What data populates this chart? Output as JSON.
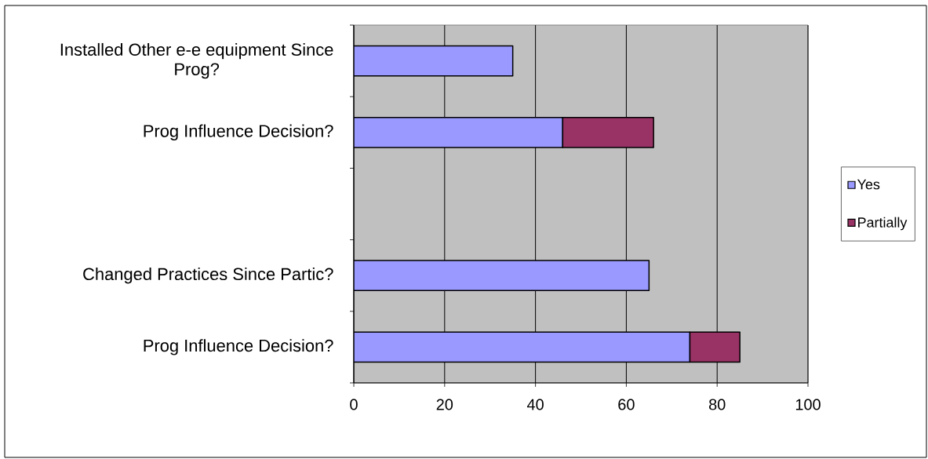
{
  "chart_data": {
    "type": "bar",
    "orientation": "horizontal",
    "stacked": true,
    "categories": [
      "Installed Other e-e equipment Since Prog?",
      "Prog Influence Decision?",
      null,
      "Changed Practices Since Partic?",
      "Prog Influence Decision?"
    ],
    "series": [
      {
        "name": "Yes",
        "color": "#9999ff",
        "values": [
          35,
          46,
          null,
          65,
          74
        ]
      },
      {
        "name": "Partially",
        "color": "#993366",
        "values": [
          null,
          20,
          null,
          null,
          11
        ]
      }
    ],
    "xlim": [
      0,
      100
    ],
    "xticks": [
      0,
      20,
      40,
      60,
      80,
      100
    ],
    "grid": "x",
    "legend": "right"
  }
}
